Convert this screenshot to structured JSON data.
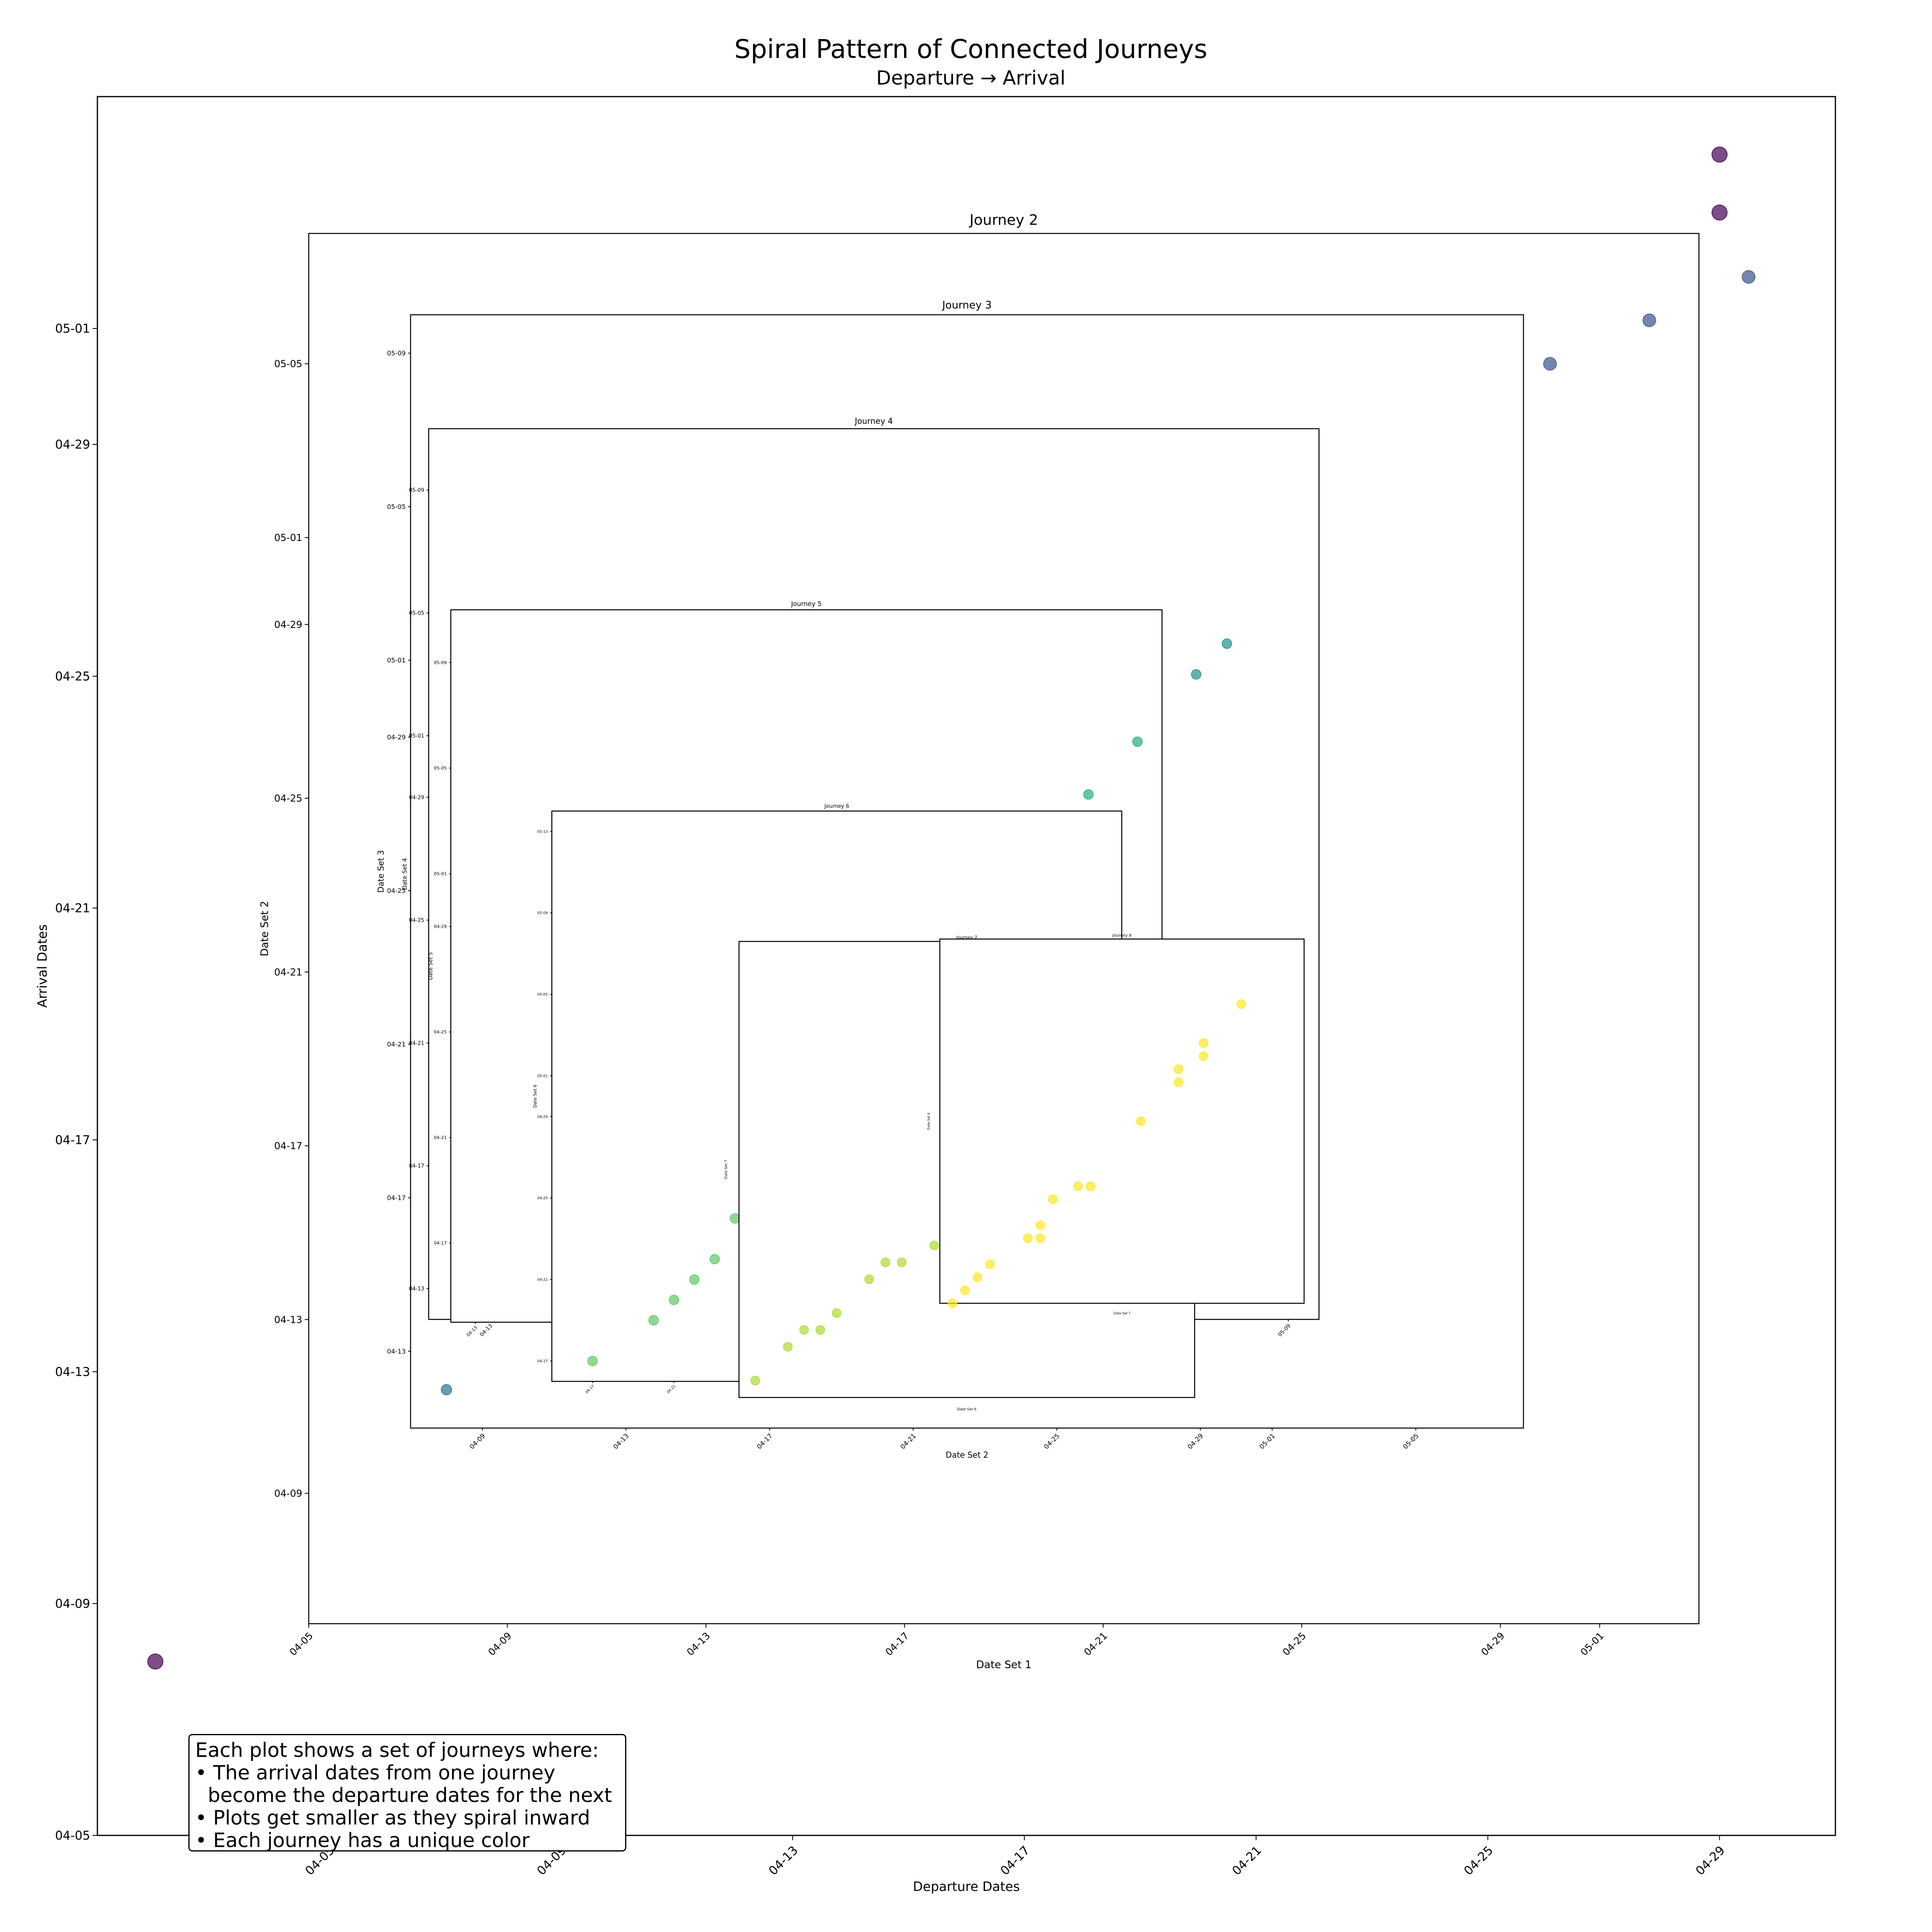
{
  "figure": {
    "title": "Spiral Pattern of Connected Journeys",
    "subtitle": "Departure → Arrival",
    "note_lines": [
      "Each plot shows a set of journeys where:",
      "• The arrival dates from one journey",
      "  become the departure dates for the next",
      "• Plots get smaller as they spiral inward",
      "• Each journey has a unique color"
    ]
  },
  "chart_data": [
    {
      "type": "scatter",
      "title": "",
      "xlabel": "Departure Dates",
      "ylabel": "Arrival Dates",
      "xlim": [
        "2024-04-01",
        "2024-05-01"
      ],
      "ylim": [
        "2024-04-05",
        "2024-05-05"
      ],
      "xticks": [
        "04-05",
        "04-09",
        "04-13",
        "04-17",
        "04-21",
        "04-25",
        "04-29"
      ],
      "yticks": [
        "04-05",
        "04-09",
        "04-13",
        "04-17",
        "04-21",
        "04-25",
        "04-29",
        "05-01"
      ],
      "color": "#440154",
      "points": [
        {
          "x": "2024-04-02",
          "y": "2024-04-08"
        },
        {
          "x": "2024-04-03",
          "y": "2024-04-06"
        },
        {
          "x": "2024-04-06",
          "y": "2024-04-09"
        },
        {
          "x": "2024-04-29",
          "y": "2024-05-03"
        },
        {
          "x": "2024-04-29",
          "y": "2024-05-04"
        }
      ]
    },
    {
      "type": "scatter",
      "title": "Journey 2",
      "xlabel": "Date Set 1",
      "ylabel": "Date Set 2",
      "xlim": [
        "2024-04-05",
        "2024-05-03"
      ],
      "ylim": [
        "2024-04-06",
        "2024-05-08"
      ],
      "xticks": [
        "04-05",
        "04-09",
        "04-13",
        "04-17",
        "04-21",
        "04-25",
        "04-29",
        "05-01"
      ],
      "yticks": [
        "04-09",
        "04-13",
        "04-17",
        "04-21",
        "04-25",
        "04-29",
        "05-01",
        "05-05"
      ],
      "color": "#3b528b",
      "points": [
        {
          "x": "2024-04-08",
          "y": "2024-04-12"
        },
        {
          "x": "2024-04-13",
          "y": "2024-04-14"
        },
        {
          "x": "2024-04-27",
          "y": "2024-05-05"
        },
        {
          "x": "2024-04-29",
          "y": "2024-05-05"
        },
        {
          "x": "2024-04-30",
          "y": "2024-05-05"
        },
        {
          "x": "2024-05-02",
          "y": "2024-05-06"
        },
        {
          "x": "2024-05-04",
          "y": "2024-05-07"
        }
      ]
    },
    {
      "type": "scatter",
      "title": "Journey 3",
      "xlabel": "Date Set 2",
      "ylabel": "Date Set 3",
      "xlim": [
        "2024-04-07",
        "2024-05-08"
      ],
      "ylim": [
        "2024-04-11",
        "2024-05-10"
      ],
      "xticks": [
        "04-09",
        "04-13",
        "04-17",
        "04-21",
        "04-25",
        "04-29",
        "05-01",
        "05-05"
      ],
      "yticks": [
        "04-13",
        "04-17",
        "04-21",
        "04-25",
        "04-29",
        "05-01",
        "05-05",
        "05-09"
      ],
      "color": "#2c728e",
      "points": [
        {
          "x": "2024-04-08",
          "y": "2024-04-12"
        },
        {
          "x": "2024-05-01",
          "y": "2024-05-03"
        },
        {
          "x": "2024-05-01",
          "y": "2024-05-04"
        }
      ]
    },
    {
      "type": "scatter",
      "title": "Journey 4",
      "xlabel": "",
      "ylabel": "Date Set 4",
      "xlim": [
        "2024-04-11",
        "2024-05-10"
      ],
      "ylim": [
        "2024-04-12",
        "2024-05-11"
      ],
      "xticks": [
        "04-13",
        "05-09"
      ],
      "yticks": [
        "04-13",
        "04-17",
        "04-21",
        "04-25",
        "04-29",
        "05-01",
        "05-05",
        "05-09"
      ],
      "color": "#21918c",
      "points": [
        {
          "x": "2024-04-14",
          "y": "2024-04-14"
        },
        {
          "x": "2024-05-04",
          "y": "2024-05-01"
        },
        {
          "x": "2024-05-06",
          "y": "2024-05-03"
        },
        {
          "x": "2024-05-07",
          "y": "2024-05-04"
        },
        {
          "x": "2024-05-03",
          "y": "2024-04-29"
        }
      ]
    },
    {
      "type": "scatter",
      "title": "Journey 5",
      "xlabel": "",
      "ylabel": "Date Set 5",
      "xlim": [
        "2024-04-12",
        "2024-05-11"
      ],
      "ylim": [
        "2024-04-14",
        "2024-05-11"
      ],
      "xticks": [
        "04-13"
      ],
      "yticks": [
        "04-17",
        "04-21",
        "04-25",
        "04-29",
        "05-01",
        "05-05",
        "05-09"
      ],
      "color": "#27ad81",
      "points": [
        {
          "x": "2024-04-22",
          "y": "2024-04-15"
        },
        {
          "x": "2024-04-24",
          "y": "2024-04-17"
        },
        {
          "x": "2024-04-25",
          "y": "2024-04-18"
        },
        {
          "x": "2024-05-06",
          "y": "2024-05-02"
        },
        {
          "x": "2024-05-08",
          "y": "2024-05-04"
        },
        {
          "x": "2024-05-10",
          "y": "2024-05-06"
        }
      ]
    },
    {
      "type": "scatter",
      "title": "Journey 6",
      "xlabel": "",
      "ylabel": "Date Set 6",
      "xlim": [
        "2024-04-15",
        "2024-05-13"
      ],
      "ylim": [
        "2024-04-16",
        "2024-05-14"
      ],
      "xticks": [
        "04-17",
        "04-21"
      ],
      "yticks": [
        "04-17",
        "04-21",
        "04-25",
        "04-29",
        "05-01",
        "05-05",
        "05-09",
        "05-13"
      ],
      "color": "#5ec962",
      "points": [
        {
          "x": "2024-04-17",
          "y": "2024-04-17"
        },
        {
          "x": "2024-04-20",
          "y": "2024-04-19"
        },
        {
          "x": "2024-04-21",
          "y": "2024-04-20"
        },
        {
          "x": "2024-04-22",
          "y": "2024-04-21"
        },
        {
          "x": "2024-04-23",
          "y": "2024-04-22"
        },
        {
          "x": "2024-04-24",
          "y": "2024-04-24"
        }
      ]
    },
    {
      "type": "scatter",
      "title": "Journey 7",
      "xlabel": "Date Set 6",
      "ylabel": "Date Set 7",
      "xlim": [
        "2024-04-17",
        "2024-05-15"
      ],
      "ylim": [
        "2024-04-18",
        "2024-05-15"
      ],
      "xticks": [],
      "yticks": [],
      "color": "#addc30",
      "points": [
        {
          "x": "2024-04-18",
          "y": "2024-04-19"
        },
        {
          "x": "2024-04-20",
          "y": "2024-04-21"
        },
        {
          "x": "2024-04-21",
          "y": "2024-04-22"
        },
        {
          "x": "2024-04-22",
          "y": "2024-04-22"
        },
        {
          "x": "2024-04-23",
          "y": "2024-04-23"
        },
        {
          "x": "2024-04-25",
          "y": "2024-04-25"
        },
        {
          "x": "2024-04-26",
          "y": "2024-04-26"
        },
        {
          "x": "2024-04-27",
          "y": "2024-04-26"
        },
        {
          "x": "2024-04-29",
          "y": "2024-04-27"
        }
      ]
    },
    {
      "type": "scatter",
      "title": "Journey 8",
      "xlabel": "Date Set 7",
      "ylabel": "Date Set 8",
      "xlim": [
        "2024-04-18",
        "2024-05-17"
      ],
      "ylim": [
        "2024-04-19",
        "2024-05-17"
      ],
      "xticks": [],
      "yticks": [],
      "color": "#fde725",
      "points": [
        {
          "x": "2024-04-19",
          "y": "2024-04-19"
        },
        {
          "x": "2024-04-20",
          "y": "2024-04-20"
        },
        {
          "x": "2024-04-21",
          "y": "2024-04-21"
        },
        {
          "x": "2024-04-22",
          "y": "2024-04-22"
        },
        {
          "x": "2024-04-25",
          "y": "2024-04-24"
        },
        {
          "x": "2024-04-26",
          "y": "2024-04-24"
        },
        {
          "x": "2024-04-26",
          "y": "2024-04-25"
        },
        {
          "x": "2024-04-27",
          "y": "2024-04-27"
        },
        {
          "x": "2024-04-29",
          "y": "2024-04-28"
        },
        {
          "x": "2024-04-30",
          "y": "2024-04-28"
        },
        {
          "x": "2024-05-04",
          "y": "2024-05-03"
        },
        {
          "x": "2024-05-07",
          "y": "2024-05-06"
        },
        {
          "x": "2024-05-07",
          "y": "2024-05-07"
        },
        {
          "x": "2024-05-09",
          "y": "2024-05-08"
        },
        {
          "x": "2024-05-09",
          "y": "2024-05-09"
        },
        {
          "x": "2024-05-12",
          "y": "2024-05-12"
        }
      ]
    }
  ]
}
